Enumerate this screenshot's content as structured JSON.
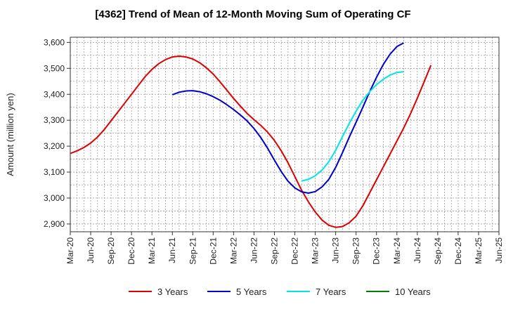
{
  "chart_data": {
    "type": "line",
    "title": "[4362]  Trend of Mean of 12-Month Moving Sum of Operating CF",
    "xlabel": "",
    "ylabel": "Amount (million yen)",
    "ylim": [
      2870,
      3620
    ],
    "yticks": [
      2900,
      3000,
      3100,
      3200,
      3300,
      3400,
      3500,
      3600
    ],
    "ytick_labels": [
      "2,900",
      "3,000",
      "3,100",
      "3,200",
      "3,300",
      "3,400",
      "3,500",
      "3,600"
    ],
    "xlim": [
      0,
      63
    ],
    "x_ticks": [
      0,
      3,
      6,
      9,
      12,
      15,
      18,
      21,
      24,
      27,
      30,
      33,
      36,
      39,
      42,
      45,
      48,
      51,
      54,
      57,
      60,
      63
    ],
    "x_tick_labels": [
      "Mar-20",
      "Jun-20",
      "Sep-20",
      "Dec-20",
      "Mar-21",
      "Jun-21",
      "Sep-21",
      "Dec-21",
      "Mar-22",
      "Jun-22",
      "Sep-22",
      "Dec-22",
      "Mar-23",
      "Jun-23",
      "Sep-23",
      "Dec-23",
      "Mar-24",
      "Jun-24",
      "Sep-24",
      "Dec-24",
      "Mar-25",
      "Jun-25"
    ],
    "grid": true,
    "legend_position": "bottom",
    "series": [
      {
        "name": "3 Years",
        "color": "#dd0000",
        "points": [
          [
            0,
            3172
          ],
          [
            1,
            3182
          ],
          [
            2,
            3195
          ],
          [
            3,
            3212
          ],
          [
            4,
            3235
          ],
          [
            5,
            3264
          ],
          [
            6,
            3298
          ],
          [
            7,
            3332
          ],
          [
            8,
            3366
          ],
          [
            9,
            3400
          ],
          [
            10,
            3434
          ],
          [
            11,
            3468
          ],
          [
            12,
            3496
          ],
          [
            13,
            3518
          ],
          [
            14,
            3534
          ],
          [
            15,
            3544
          ],
          [
            16,
            3547
          ],
          [
            17,
            3544
          ],
          [
            18,
            3536
          ],
          [
            19,
            3522
          ],
          [
            20,
            3502
          ],
          [
            21,
            3478
          ],
          [
            22,
            3448
          ],
          [
            23,
            3416
          ],
          [
            24,
            3384
          ],
          [
            25,
            3354
          ],
          [
            26,
            3326
          ],
          [
            27,
            3302
          ],
          [
            28,
            3280
          ],
          [
            29,
            3254
          ],
          [
            30,
            3222
          ],
          [
            31,
            3182
          ],
          [
            32,
            3136
          ],
          [
            33,
            3083
          ],
          [
            34,
            3030
          ],
          [
            35,
            2985
          ],
          [
            36,
            2946
          ],
          [
            37,
            2915
          ],
          [
            38,
            2895
          ],
          [
            39,
            2887
          ],
          [
            40,
            2890
          ],
          [
            41,
            2905
          ],
          [
            42,
            2930
          ],
          [
            43,
            2970
          ],
          [
            44,
            3020
          ],
          [
            45,
            3070
          ],
          [
            46,
            3120
          ],
          [
            47,
            3170
          ],
          [
            48,
            3220
          ],
          [
            49,
            3270
          ],
          [
            50,
            3325
          ],
          [
            51,
            3385
          ],
          [
            52,
            3448
          ],
          [
            53,
            3512
          ]
        ]
      },
      {
        "name": "5 Years",
        "color": "#0000cc",
        "points": [
          [
            15,
            3398
          ],
          [
            16,
            3408
          ],
          [
            17,
            3413
          ],
          [
            18,
            3414
          ],
          [
            19,
            3410
          ],
          [
            20,
            3402
          ],
          [
            21,
            3391
          ],
          [
            22,
            3377
          ],
          [
            23,
            3360
          ],
          [
            24,
            3341
          ],
          [
            25,
            3320
          ],
          [
            26,
            3297
          ],
          [
            27,
            3268
          ],
          [
            28,
            3233
          ],
          [
            29,
            3192
          ],
          [
            30,
            3146
          ],
          [
            31,
            3102
          ],
          [
            32,
            3065
          ],
          [
            33,
            3039
          ],
          [
            34,
            3024
          ],
          [
            35,
            3019
          ],
          [
            36,
            3025
          ],
          [
            37,
            3043
          ],
          [
            38,
            3072
          ],
          [
            39,
            3118
          ],
          [
            40,
            3175
          ],
          [
            41,
            3235
          ],
          [
            42,
            3292
          ],
          [
            43,
            3350
          ],
          [
            44,
            3410
          ],
          [
            45,
            3465
          ],
          [
            46,
            3515
          ],
          [
            47,
            3555
          ],
          [
            48,
            3584
          ],
          [
            49,
            3598
          ]
        ]
      },
      {
        "name": "7 Years",
        "color": "#00e5e5",
        "points": [
          [
            34,
            3066
          ],
          [
            35,
            3072
          ],
          [
            36,
            3086
          ],
          [
            37,
            3108
          ],
          [
            38,
            3140
          ],
          [
            39,
            3184
          ],
          [
            40,
            3237
          ],
          [
            41,
            3288
          ],
          [
            42,
            3335
          ],
          [
            43,
            3377
          ],
          [
            44,
            3410
          ],
          [
            45,
            3437
          ],
          [
            46,
            3458
          ],
          [
            47,
            3474
          ],
          [
            48,
            3484
          ],
          [
            49,
            3487
          ]
        ]
      },
      {
        "name": "10 Years",
        "color": "#008000",
        "points": []
      }
    ]
  }
}
